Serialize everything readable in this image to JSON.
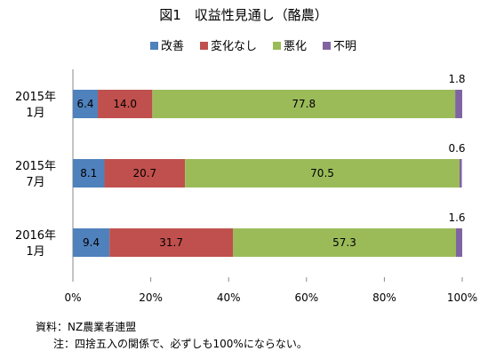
{
  "chart_data": {
    "type": "bar",
    "orientation": "horizontal",
    "stacked": true,
    "title": "図1　収益性見通し（酪農）",
    "categories": [
      {
        "line1": "2015年",
        "line2": "1月"
      },
      {
        "line1": "2015年",
        "line2": "7月"
      },
      {
        "line1": "2016年",
        "line2": "1月"
      }
    ],
    "series": [
      {
        "name": "改善",
        "color": "#4f81bd",
        "values": [
          6.4,
          8.1,
          9.4
        ]
      },
      {
        "name": "変化なし",
        "color": "#c0504d",
        "values": [
          14.0,
          20.7,
          31.7
        ]
      },
      {
        "name": "悪化",
        "color": "#9bbb59",
        "values": [
          77.8,
          70.5,
          57.3
        ]
      },
      {
        "name": "不明",
        "color": "#8064a2",
        "values": [
          1.8,
          0.6,
          1.6
        ]
      }
    ],
    "xlim": [
      0,
      100
    ],
    "xticks": [
      "0%",
      "20%",
      "40%",
      "60%",
      "80%",
      "100%"
    ],
    "legend_position": "top",
    "grid": false
  },
  "notes": {
    "source": "資料：NZ農業者連盟",
    "remark": "注：四捨五入の関係で、必ずしも100%にならない。"
  }
}
